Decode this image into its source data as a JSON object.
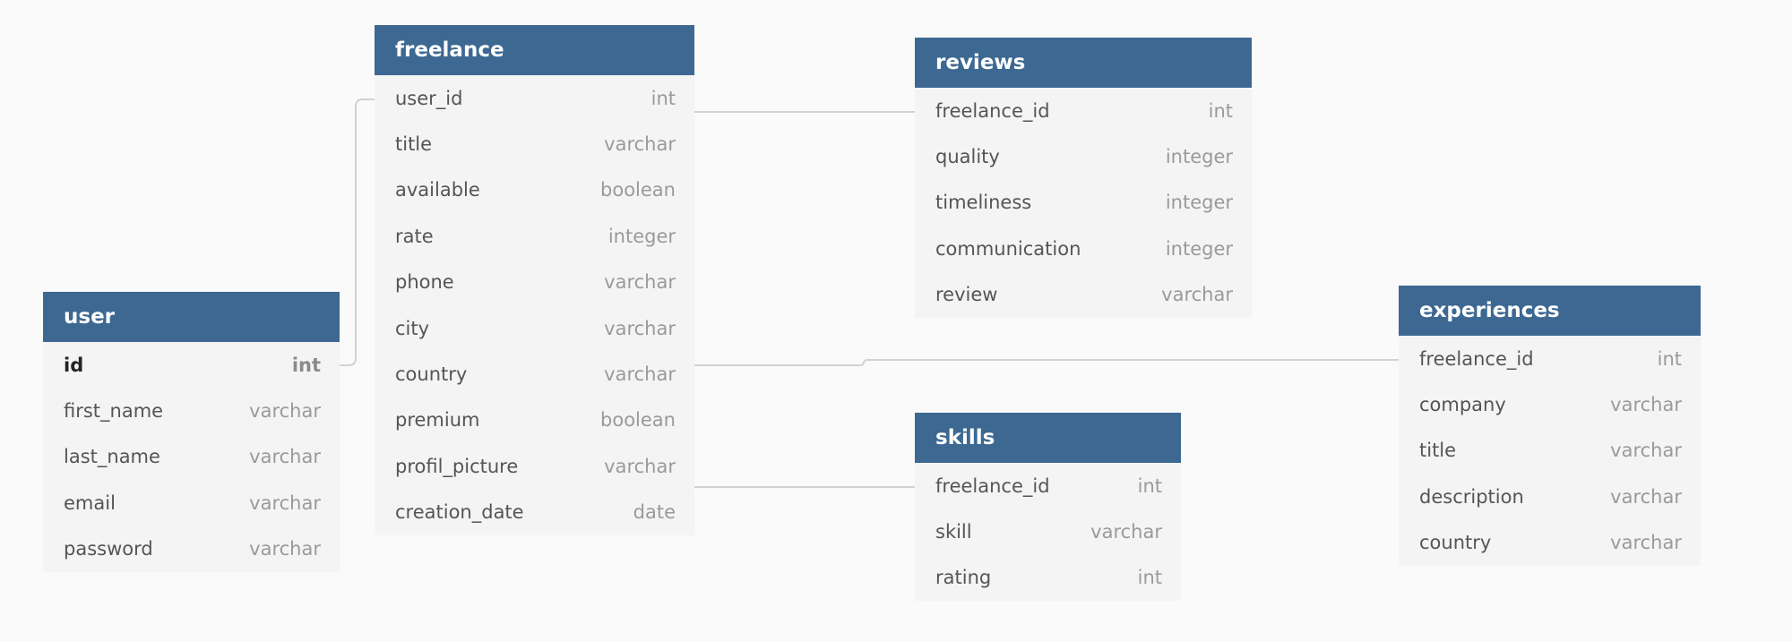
{
  "tables": {
    "freelance": {
      "name": "freelance",
      "fields": [
        {
          "name": "user_id",
          "type": "int"
        },
        {
          "name": "title",
          "type": "varchar"
        },
        {
          "name": "available",
          "type": "boolean"
        },
        {
          "name": "rate",
          "type": "integer"
        },
        {
          "name": "phone",
          "type": "varchar"
        },
        {
          "name": "city",
          "type": "varchar"
        },
        {
          "name": "country",
          "type": "varchar"
        },
        {
          "name": "premium",
          "type": "boolean"
        },
        {
          "name": "profil_picture",
          "type": "varchar"
        },
        {
          "name": "creation_date",
          "type": "date"
        }
      ]
    },
    "user": {
      "name": "user",
      "fields": [
        {
          "name": "id",
          "type": "int"
        },
        {
          "name": "first_name",
          "type": "varchar"
        },
        {
          "name": "last_name",
          "type": "varchar"
        },
        {
          "name": "email",
          "type": "varchar"
        },
        {
          "name": "password",
          "type": "varchar"
        }
      ]
    },
    "reviews": {
      "name": "reviews",
      "fields": [
        {
          "name": "freelance_id",
          "type": "int"
        },
        {
          "name": "quality",
          "type": "integer"
        },
        {
          "name": "timeliness",
          "type": "integer"
        },
        {
          "name": "communication",
          "type": "integer"
        },
        {
          "name": "review",
          "type": "varchar"
        }
      ]
    },
    "skills": {
      "name": "skills",
      "fields": [
        {
          "name": "freelance_id",
          "type": "int"
        },
        {
          "name": "skill",
          "type": "varchar"
        },
        {
          "name": "rating",
          "type": "int"
        }
      ]
    },
    "experiences": {
      "name": "experiences",
      "fields": [
        {
          "name": "freelance_id",
          "type": "int"
        },
        {
          "name": "company",
          "type": "varchar"
        },
        {
          "name": "title",
          "type": "varchar"
        },
        {
          "name": "description",
          "type": "varchar"
        },
        {
          "name": "country",
          "type": "varchar"
        }
      ]
    }
  },
  "relationships": [
    {
      "from": "user.id",
      "to": "freelance.user_id"
    },
    {
      "from": "freelance.user_id",
      "to": "reviews.freelance_id"
    },
    {
      "from": "freelance.user_id",
      "to": "experiences.freelance_id"
    },
    {
      "from": "freelance.user_id",
      "to": "skills.freelance_id"
    }
  ],
  "colors": {
    "header_background": "#3d6892",
    "header_text": "#ffffff",
    "table_background": "#f4f4f4",
    "canvas_background": "#fafafa",
    "connector": "#d2d2d2"
  }
}
